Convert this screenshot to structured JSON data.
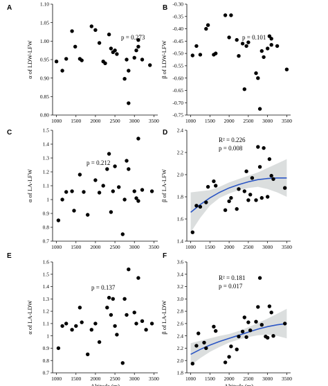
{
  "chart_data": [
    {
      "type": "scatter",
      "panel": "A",
      "ylabel": "α of LDW-LFW",
      "xlabel": "",
      "xlim": [
        900,
        3600
      ],
      "ylim": [
        0.8,
        1.1
      ],
      "xticks": [
        1000,
        1500,
        2000,
        2500,
        3000,
        3500
      ],
      "yticks": [
        0.8,
        0.85,
        0.9,
        0.95,
        1.0,
        1.05,
        1.1
      ],
      "ytick_labels": [
        "0.80",
        "0.85",
        "0.90",
        "0.95",
        "1.00",
        "1.05",
        "1.10"
      ],
      "annotations": [
        "p = 0.273"
      ],
      "points": [
        [
          1000,
          0.945
        ],
        [
          1150,
          0.92
        ],
        [
          1250,
          0.952
        ],
        [
          1400,
          1.027
        ],
        [
          1480,
          0.985
        ],
        [
          1600,
          0.952
        ],
        [
          1650,
          0.948
        ],
        [
          1900,
          1.04
        ],
        [
          2000,
          1.03
        ],
        [
          2100,
          0.995
        ],
        [
          2200,
          0.945
        ],
        [
          2250,
          0.94
        ],
        [
          2350,
          1.018
        ],
        [
          2400,
          0.98
        ],
        [
          2450,
          0.97
        ],
        [
          2500,
          0.975
        ],
        [
          2550,
          0.965
        ],
        [
          2750,
          0.898
        ],
        [
          2800,
          0.95
        ],
        [
          2850,
          0.92
        ],
        [
          2850,
          0.832
        ],
        [
          3000,
          0.955
        ],
        [
          3050,
          0.975
        ],
        [
          3100,
          0.985
        ],
        [
          3100,
          1.003
        ],
        [
          3200,
          0.95
        ],
        [
          3400,
          0.935
        ]
      ]
    },
    {
      "type": "scatter",
      "panel": "B",
      "ylabel": "β of LDW-LFW",
      "xlabel": "",
      "xlim": [
        900,
        3600
      ],
      "ylim": [
        -0.75,
        -0.3
      ],
      "xticks": [
        1000,
        1500,
        2000,
        2500,
        3000,
        3500
      ],
      "yticks": [
        -0.75,
        -0.7,
        -0.65,
        -0.6,
        -0.55,
        -0.5,
        -0.45,
        -0.4,
        -0.35,
        -0.3
      ],
      "ytick_labels": [
        "-0.75",
        "-0.70",
        "-0.65",
        "-0.60",
        "-0.55",
        "-0.50",
        "-0.45",
        "-0.40",
        "-0.35",
        "-0.30"
      ],
      "annotations": [
        "p = 0.101"
      ],
      "points": [
        [
          1050,
          -0.508
        ],
        [
          1150,
          -0.47
        ],
        [
          1250,
          -0.505
        ],
        [
          1400,
          -0.4
        ],
        [
          1450,
          -0.385
        ],
        [
          1600,
          -0.505
        ],
        [
          1650,
          -0.5
        ],
        [
          1900,
          -0.345
        ],
        [
          2000,
          -0.435
        ],
        [
          2050,
          -0.345
        ],
        [
          2200,
          -0.445
        ],
        [
          2250,
          -0.51
        ],
        [
          2350,
          -0.46
        ],
        [
          2400,
          -0.645
        ],
        [
          2450,
          -0.47
        ],
        [
          2500,
          -0.455
        ],
        [
          2700,
          -0.58
        ],
        [
          2750,
          -0.6
        ],
        [
          2800,
          -0.725
        ],
        [
          2850,
          -0.49
        ],
        [
          2900,
          -0.515
        ],
        [
          3000,
          -0.48
        ],
        [
          3050,
          -0.43
        ],
        [
          3100,
          -0.465
        ],
        [
          3100,
          -0.44
        ],
        [
          3250,
          -0.47
        ],
        [
          3500,
          -0.565
        ]
      ]
    },
    {
      "type": "scatter",
      "panel": "C",
      "ylabel": "α of LA-LFW",
      "xlabel": "",
      "xlim": [
        900,
        3600
      ],
      "ylim": [
        0.7,
        1.5
      ],
      "xticks": [
        1000,
        1500,
        2000,
        2500,
        3000,
        3500
      ],
      "yticks": [
        0.7,
        0.8,
        0.9,
        1.0,
        1.1,
        1.2,
        1.3,
        1.4,
        1.5
      ],
      "ytick_labels": [
        "0.7",
        "0.8",
        "0.9",
        "1",
        "1.1",
        "1.2",
        "1.3",
        "1.4",
        "1.5"
      ],
      "annotations": [
        "p = 0.212"
      ],
      "points": [
        [
          1050,
          0.85
        ],
        [
          1150,
          1.0
        ],
        [
          1250,
          1.055
        ],
        [
          1400,
          1.06
        ],
        [
          1450,
          0.92
        ],
        [
          1600,
          1.18
        ],
        [
          1700,
          1.055
        ],
        [
          1800,
          0.89
        ],
        [
          2000,
          1.14
        ],
        [
          2100,
          1.05
        ],
        [
          2200,
          1.1
        ],
        [
          2300,
          1.22
        ],
        [
          2350,
          1.33
        ],
        [
          2400,
          0.91
        ],
        [
          2450,
          1.06
        ],
        [
          2500,
          1.24
        ],
        [
          2600,
          1.09
        ],
        [
          2700,
          0.75
        ],
        [
          2750,
          1.0
        ],
        [
          2800,
          1.28
        ],
        [
          2850,
          1.22
        ],
        [
          3000,
          1.06
        ],
        [
          3050,
          1.01
        ],
        [
          3100,
          0.99
        ],
        [
          3100,
          1.44
        ],
        [
          3200,
          1.07
        ],
        [
          3450,
          1.06
        ]
      ]
    },
    {
      "type": "scatter",
      "panel": "D",
      "ylabel": "β of LA-LFW",
      "xlabel": "",
      "xlim": [
        900,
        3600
      ],
      "ylim": [
        1.4,
        2.4
      ],
      "xticks": [
        1000,
        1500,
        2000,
        2500,
        3000,
        3500
      ],
      "yticks": [
        1.4,
        1.6,
        1.8,
        2.0,
        2.2,
        2.4
      ],
      "ytick_labels": [
        "1.4",
        "1.6",
        "1.8",
        "2.0",
        "2.2",
        "2.4"
      ],
      "annotations": [
        "R² = 0.226",
        "p = 0.008"
      ],
      "points": [
        [
          1050,
          1.48
        ],
        [
          1150,
          1.72
        ],
        [
          1250,
          1.71
        ],
        [
          1400,
          1.75
        ],
        [
          1450,
          1.89
        ],
        [
          1600,
          1.94
        ],
        [
          1650,
          1.9
        ],
        [
          1900,
          1.68
        ],
        [
          2000,
          1.76
        ],
        [
          2050,
          1.79
        ],
        [
          2200,
          1.69
        ],
        [
          2250,
          1.87
        ],
        [
          2400,
          1.85
        ],
        [
          2450,
          2.03
        ],
        [
          2500,
          1.77
        ],
        [
          2550,
          1.82
        ],
        [
          2600,
          1.97
        ],
        [
          2700,
          1.77
        ],
        [
          2750,
          2.25
        ],
        [
          2800,
          2.07
        ],
        [
          2850,
          1.79
        ],
        [
          2900,
          2.24
        ],
        [
          3000,
          1.8
        ],
        [
          3050,
          2.14
        ],
        [
          3100,
          1.99
        ],
        [
          3150,
          1.96
        ],
        [
          3450,
          1.88
        ]
      ],
      "fit": {
        "x": [
          1000,
          1250,
          1500,
          1750,
          2000,
          2250,
          2500,
          2750,
          3000,
          3250,
          3500
        ],
        "y": [
          1.66,
          1.73,
          1.79,
          1.84,
          1.88,
          1.91,
          1.935,
          1.955,
          1.965,
          1.97,
          1.97
        ],
        "ci_low": [
          1.48,
          1.61,
          1.72,
          1.79,
          1.83,
          1.86,
          1.88,
          1.89,
          1.87,
          1.84,
          1.8
        ],
        "ci_high": [
          1.84,
          1.85,
          1.86,
          1.89,
          1.93,
          1.96,
          1.99,
          2.02,
          2.06,
          2.1,
          2.14
        ]
      }
    },
    {
      "type": "scatter",
      "panel": "E",
      "ylabel": "α of LA-LDW",
      "xlabel": "Altitude (m)",
      "xlim": [
        900,
        3600
      ],
      "ylim": [
        0.7,
        1.6
      ],
      "xticks": [
        1000,
        1500,
        2000,
        2500,
        3000,
        3500
      ],
      "yticks": [
        0.7,
        0.8,
        0.9,
        1.0,
        1.1,
        1.2,
        1.3,
        1.4,
        1.5,
        1.6
      ],
      "ytick_labels": [
        "0.7",
        "0.8",
        "0.9",
        "1",
        "1.1",
        "1.2",
        "1.3",
        "1.4",
        "1.5",
        "1.6"
      ],
      "annotations": [
        "p = 0.137"
      ],
      "points": [
        [
          1050,
          0.9
        ],
        [
          1150,
          1.08
        ],
        [
          1250,
          1.1
        ],
        [
          1400,
          1.05
        ],
        [
          1500,
          1.08
        ],
        [
          1600,
          1.23
        ],
        [
          1650,
          1.11
        ],
        [
          1800,
          0.85
        ],
        [
          1900,
          1.05
        ],
        [
          2000,
          1.1
        ],
        [
          2100,
          0.95
        ],
        [
          2300,
          1.23
        ],
        [
          2350,
          1.31
        ],
        [
          2400,
          1.17
        ],
        [
          2450,
          1.3
        ],
        [
          2500,
          1.08
        ],
        [
          2550,
          1.01
        ],
        [
          2700,
          0.78
        ],
        [
          2750,
          1.3
        ],
        [
          2800,
          1.17
        ],
        [
          2850,
          1.54
        ],
        [
          3000,
          1.19
        ],
        [
          3050,
          1.1
        ],
        [
          3100,
          1.47
        ],
        [
          3200,
          1.12
        ],
        [
          3300,
          1.05
        ],
        [
          3450,
          1.1
        ]
      ]
    },
    {
      "type": "scatter",
      "panel": "F",
      "ylabel": "β of LA-LDW",
      "xlabel": "Altitude (m)",
      "xlim": [
        900,
        3600
      ],
      "ylim": [
        1.8,
        3.6
      ],
      "xticks": [
        1000,
        1500,
        2000,
        2500,
        3000,
        3500
      ],
      "yticks": [
        1.8,
        2.0,
        2.2,
        2.4,
        2.6,
        2.8,
        3.0,
        3.2,
        3.4,
        3.6
      ],
      "ytick_labels": [
        "1.8",
        "2.0",
        "2.2",
        "2.4",
        "2.6",
        "2.8",
        "3.0",
        "3.2",
        "3.4",
        "3.6"
      ],
      "annotations": [
        "R² = 0.181",
        "p = 0.017"
      ],
      "points": [
        [
          1050,
          1.95
        ],
        [
          1150,
          2.24
        ],
        [
          1200,
          2.44
        ],
        [
          1350,
          2.29
        ],
        [
          1400,
          2.2
        ],
        [
          1600,
          2.55
        ],
        [
          1650,
          2.48
        ],
        [
          1900,
          1.97
        ],
        [
          2000,
          2.06
        ],
        [
          2050,
          2.23
        ],
        [
          2200,
          2.18
        ],
        [
          2250,
          2.39
        ],
        [
          2350,
          2.47
        ],
        [
          2400,
          2.7
        ],
        [
          2450,
          2.38
        ],
        [
          2500,
          2.62
        ],
        [
          2550,
          2.49
        ],
        [
          2700,
          2.63
        ],
        [
          2750,
          2.87
        ],
        [
          2800,
          3.34
        ],
        [
          2850,
          2.58
        ],
        [
          2950,
          2.39
        ],
        [
          3000,
          2.37
        ],
        [
          3050,
          2.88
        ],
        [
          3100,
          2.78
        ],
        [
          3150,
          2.4
        ],
        [
          3450,
          2.6
        ]
      ],
      "fit": {
        "x": [
          1000,
          1250,
          1500,
          1750,
          2000,
          2250,
          2500,
          2750,
          3000,
          3250,
          3500
        ],
        "y": [
          2.1,
          2.18,
          2.25,
          2.31,
          2.36,
          2.41,
          2.46,
          2.51,
          2.55,
          2.58,
          2.6
        ],
        "ci_low": [
          1.92,
          2.04,
          2.14,
          2.22,
          2.29,
          2.34,
          2.38,
          2.41,
          2.42,
          2.4,
          2.36
        ],
        "ci_high": [
          2.28,
          2.32,
          2.36,
          2.4,
          2.43,
          2.48,
          2.54,
          2.61,
          2.68,
          2.76,
          2.84
        ]
      }
    }
  ]
}
